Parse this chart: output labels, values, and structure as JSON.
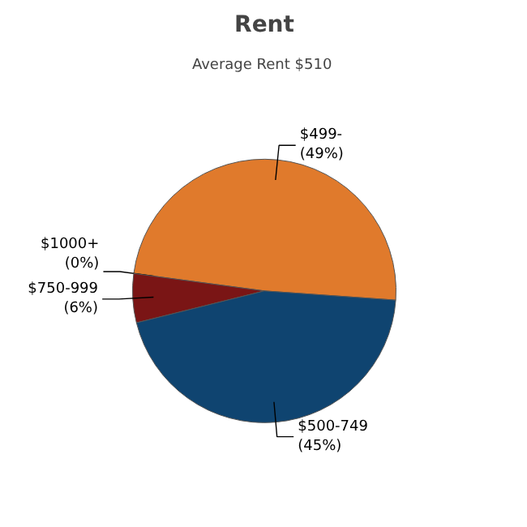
{
  "chart_data": {
    "type": "pie",
    "title": "Rent",
    "subtitle": "Average Rent  $510",
    "categories": [
      "$499-",
      "$1000+",
      "$750-999",
      "$500-749"
    ],
    "values": [
      49,
      0,
      6,
      45
    ],
    "colors": [
      "#e07a2c",
      "#9a9a9a",
      "#7a1515",
      "#0f4470"
    ],
    "value_labels": [
      "(49%)",
      "(0%)",
      "(6%)",
      "(45%)"
    ]
  }
}
